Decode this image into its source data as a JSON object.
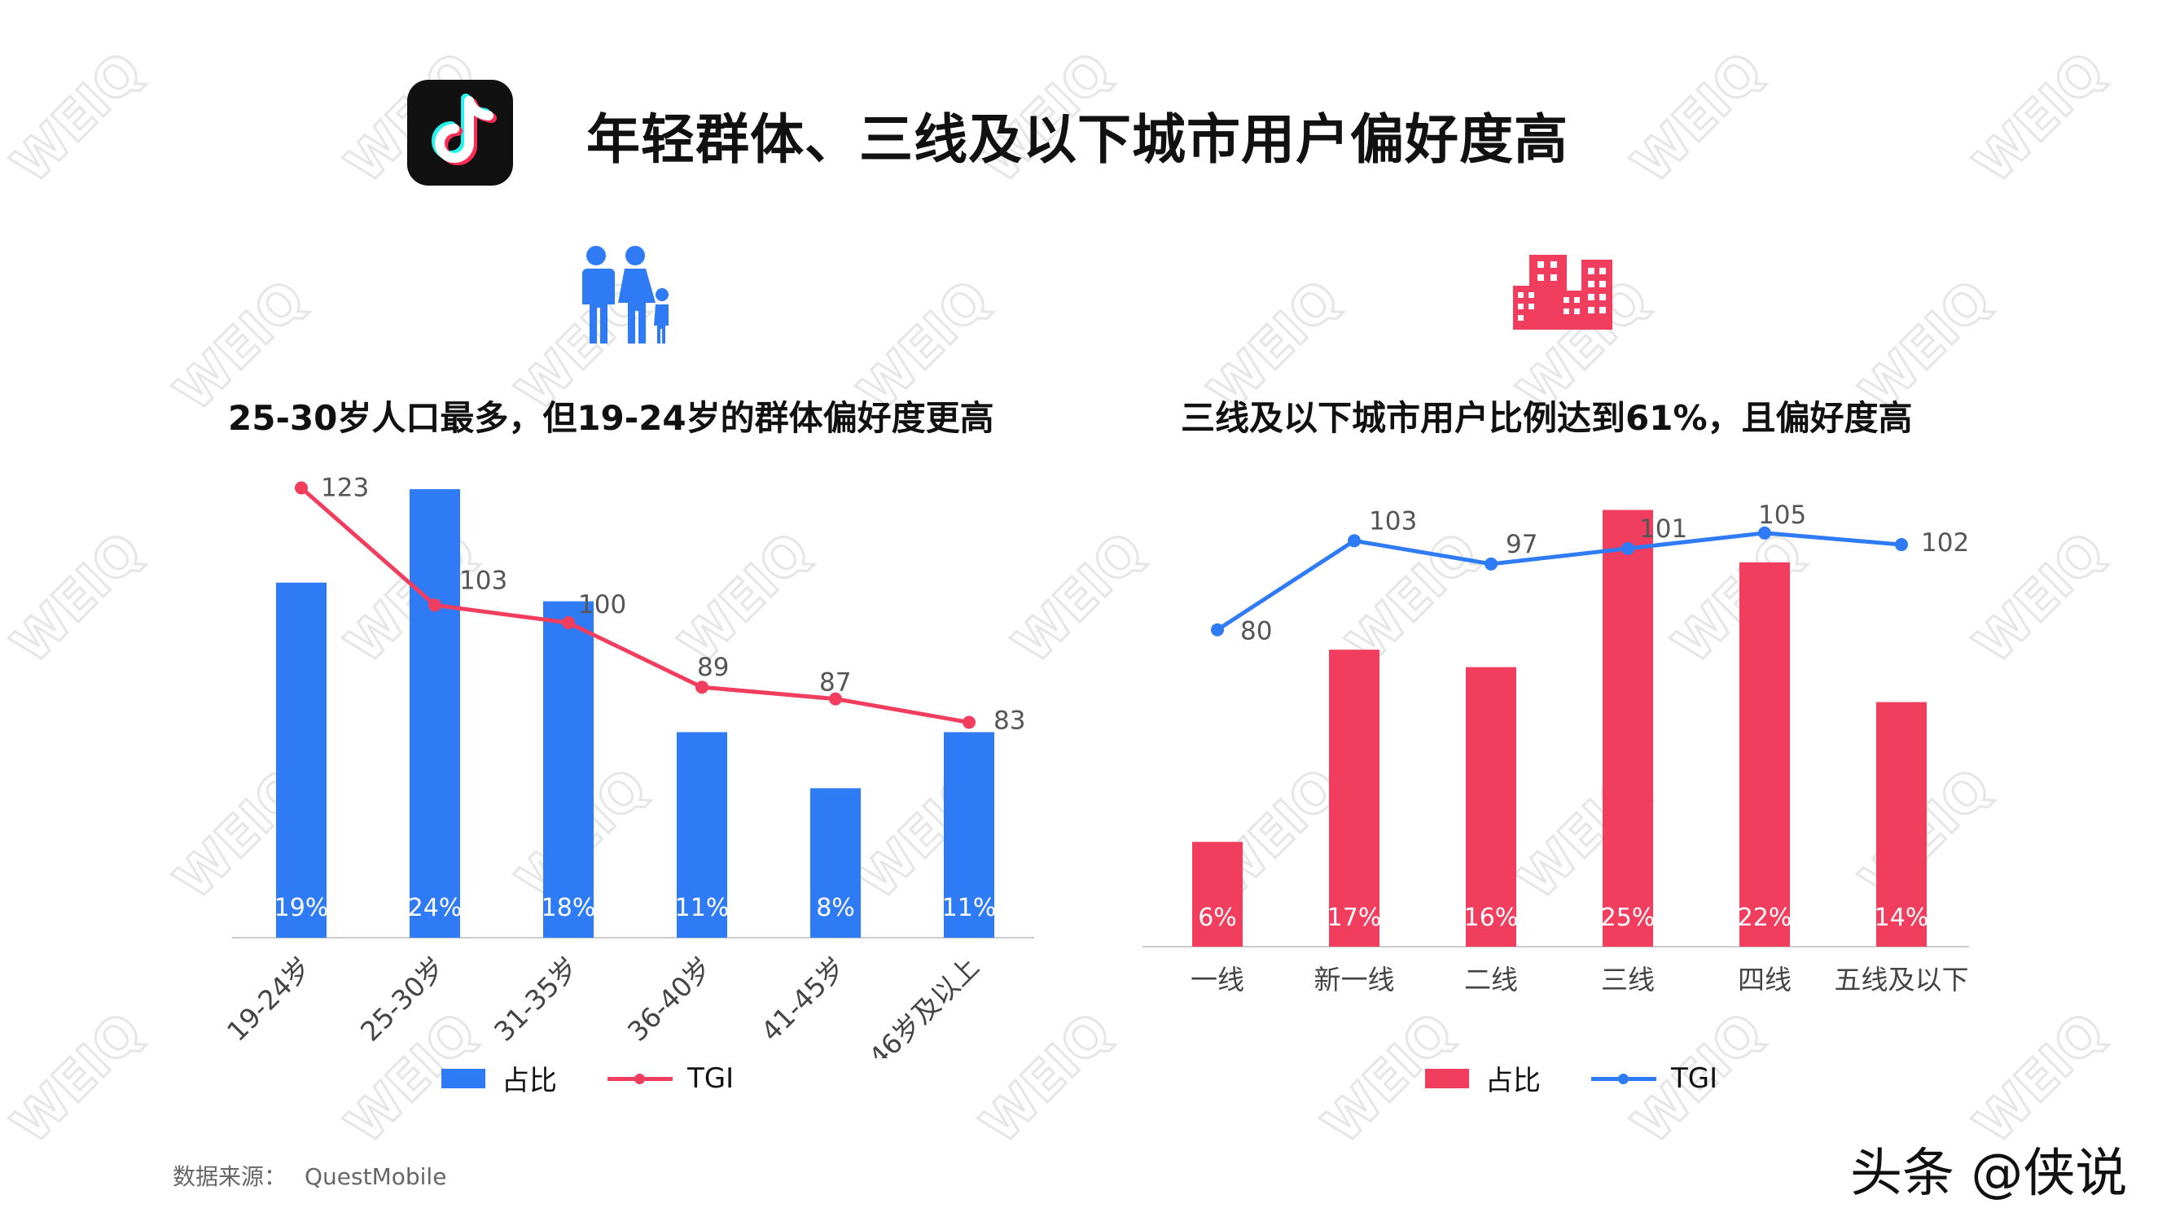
{
  "title": "年轻群体、三线及以下城市用户偏好度高",
  "source": {
    "label": "数据来源：",
    "value": "QuestMobile"
  },
  "brand": "头条 @侠说",
  "watermark_text": "WEIQ",
  "colors": {
    "blue": "#2f7bf5",
    "red": "#f23e5e",
    "axis": "#cccccc",
    "tgi_label": "#555555"
  },
  "icons": {
    "app_logo": "douyin-icon",
    "left_chart_icon": "family-icon",
    "right_chart_icon": "buildings-icon"
  },
  "chart_data": [
    {
      "type": "bar",
      "subtitle": "25-30岁人口最多，但19-24岁的群体偏好度更高",
      "categories": [
        "19-24岁",
        "25-30岁",
        "31-35岁",
        "36-40岁",
        "41-45岁",
        "46岁及以上"
      ],
      "series": [
        {
          "name": "占比",
          "type": "bar",
          "values": [
            19,
            24,
            18,
            11,
            8,
            11
          ],
          "labels": [
            "19%",
            "24%",
            "18%",
            "11%",
            "8%",
            "11%"
          ],
          "color": "#2f7bf5"
        },
        {
          "name": "TGI",
          "type": "line",
          "values": [
            123,
            103,
            100,
            89,
            87,
            83
          ],
          "color": "#f23e5e"
        }
      ],
      "bar_ylim": [
        0,
        26
      ],
      "line_ylim": [
        60,
        125
      ],
      "xtick_rotation": "-45deg",
      "legend_position": "bottom"
    },
    {
      "type": "bar",
      "subtitle": "三线及以下城市用户比例达到61%，且偏好度高",
      "categories": [
        "一线",
        "新一线",
        "二线",
        "三线",
        "四线",
        "五线及以下"
      ],
      "series": [
        {
          "name": "占比",
          "type": "bar",
          "values": [
            6,
            17,
            16,
            25,
            22,
            14
          ],
          "labels": [
            "6%",
            "17%",
            "16%",
            "25%",
            "22%",
            "14%"
          ],
          "color": "#f23e5e"
        },
        {
          "name": "TGI",
          "type": "line",
          "values": [
            80,
            103,
            97,
            101,
            105,
            102
          ],
          "color": "#2f7bf5"
        }
      ],
      "bar_ylim": [
        0,
        26
      ],
      "line_ylim": [
        40,
        110
      ],
      "xtick_rotation": "0deg",
      "legend_position": "bottom"
    }
  ]
}
